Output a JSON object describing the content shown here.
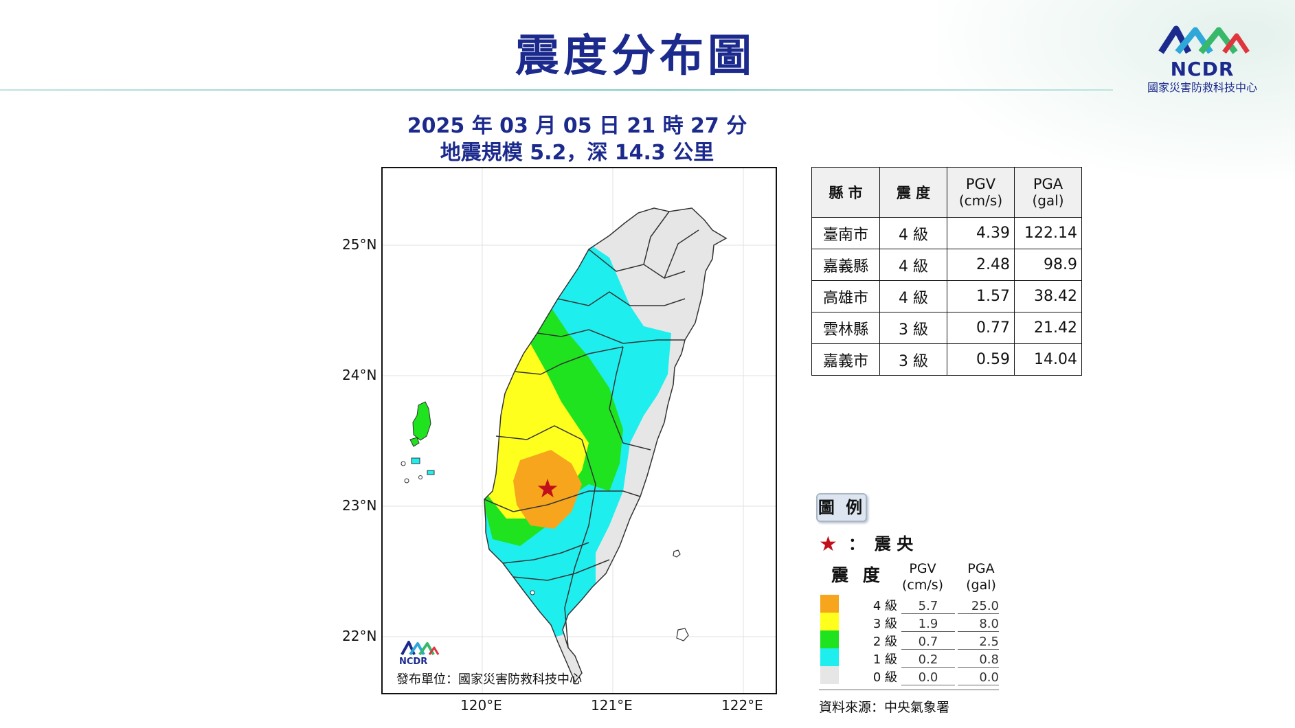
{
  "header": {
    "title": "震度分布圖",
    "logo_text": "NCDR",
    "logo_subtitle": "國家災害防救科技中心"
  },
  "event": {
    "datetime": "2025 年 03 月 05 日 21 時 27 分",
    "magnitude_depth": "地震規模 5.2，深 14.3 公里"
  },
  "map": {
    "lat_labels": [
      "25°N",
      "24°N",
      "23°N",
      "22°N"
    ],
    "lon_labels": [
      "120°E",
      "121°E",
      "122°E"
    ],
    "publisher": "發布單位：國家災害防救科技中心",
    "map_logo_text": "NCDR",
    "epicenter_marker": "star-icon"
  },
  "table": {
    "headers": {
      "county": "縣 市",
      "intensity": "震 度",
      "pgv": "PGV",
      "pgv_unit": "(cm/s)",
      "pga": "PGA",
      "pga_unit": "(gal)"
    },
    "rows": [
      {
        "county": "臺南市",
        "intensity": "4 級",
        "pgv": "4.39",
        "pga": "122.14"
      },
      {
        "county": "嘉義縣",
        "intensity": "4 級",
        "pgv": "2.48",
        "pga": "98.9"
      },
      {
        "county": "高雄市",
        "intensity": "4 級",
        "pgv": "1.57",
        "pga": "38.42"
      },
      {
        "county": "雲林縣",
        "intensity": "3 級",
        "pgv": "0.77",
        "pga": "21.42"
      },
      {
        "county": "嘉義市",
        "intensity": "3 級",
        "pgv": "0.59",
        "pga": "14.04"
      }
    ]
  },
  "legend": {
    "title": "圖 例",
    "epicenter_colon": "：",
    "epicenter_label": "震 央",
    "intensity_header": "震 度",
    "pgv_header": "PGV",
    "pgv_unit": "(cm/s)",
    "pga_header": "PGA",
    "pga_unit": "(gal)",
    "levels": [
      {
        "level": "4 級",
        "pgv": "5.7",
        "pga": "25.0",
        "color": "#f6a51d"
      },
      {
        "level": "3 級",
        "pgv": "1.9",
        "pga": "8.0",
        "color": "#ffff1e"
      },
      {
        "level": "2 級",
        "pgv": "0.7",
        "pga": "2.5",
        "color": "#1ee31e"
      },
      {
        "level": "1 級",
        "pgv": "0.2",
        "pga": "0.8",
        "color": "#1eeeee"
      },
      {
        "level": "0 級",
        "pgv": "0.0",
        "pga": "0.0",
        "color": "#e6e6e6"
      }
    ],
    "source": "資料來源：中央氣象署"
  },
  "colors": {
    "title_blue": "#1b2a8c",
    "epicenter_red": "#c1101b"
  }
}
